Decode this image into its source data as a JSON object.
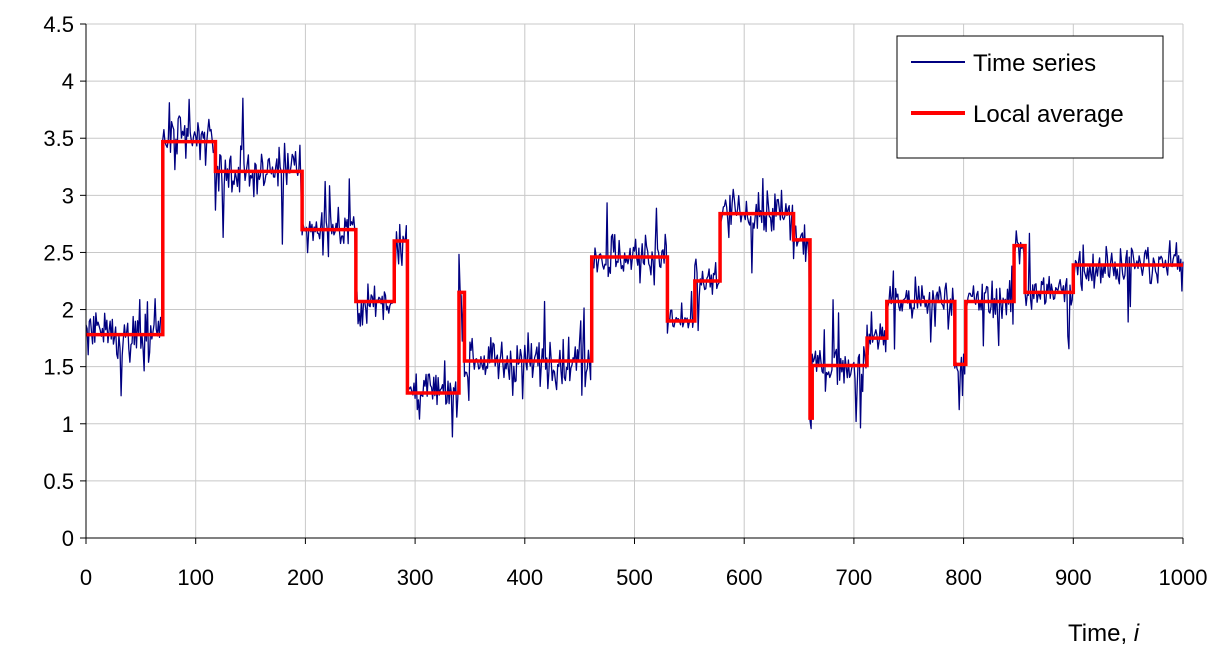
{
  "chart_data": {
    "type": "line",
    "title": "",
    "xlabel": "Time, i",
    "xlabel_main": "Time, ",
    "xlabel_var": "i",
    "ylabel": "",
    "xlim": [
      0,
      1000
    ],
    "ylim": [
      0,
      4.5
    ],
    "xticks": [
      0,
      100,
      200,
      300,
      400,
      500,
      600,
      700,
      800,
      900,
      1000
    ],
    "yticks": [
      0,
      0.5,
      1,
      1.5,
      2,
      2.5,
      3,
      3.5,
      4,
      4.5
    ],
    "xtick_labels": [
      "0",
      "100",
      "200",
      "300",
      "400",
      "500",
      "600",
      "700",
      "800",
      "900",
      "1000"
    ],
    "ytick_labels": [
      "0",
      "0.5",
      "1",
      "1.5",
      "2",
      "2.5",
      "3",
      "3.5",
      "4",
      "4.5"
    ],
    "grid": true,
    "legend_position": "top-right",
    "legend": [
      "Time series",
      "Local average"
    ],
    "series": [
      {
        "name": "Time series",
        "color": "#000080",
        "kind": "noisy",
        "noise_amplitude": 0.18,
        "spike_max": 3.85,
        "spike_min": 0.88
      },
      {
        "name": "Local average",
        "color": "#ff0000",
        "kind": "step",
        "segments": [
          {
            "start": 0,
            "end": 70,
            "value": 1.78
          },
          {
            "start": 70,
            "end": 118,
            "value": 3.47
          },
          {
            "start": 118,
            "end": 197,
            "value": 3.21
          },
          {
            "start": 197,
            "end": 246,
            "value": 2.7
          },
          {
            "start": 246,
            "end": 281,
            "value": 2.07
          },
          {
            "start": 281,
            "end": 293,
            "value": 2.6
          },
          {
            "start": 293,
            "end": 340,
            "value": 1.27
          },
          {
            "start": 340,
            "end": 345,
            "value": 2.15
          },
          {
            "start": 345,
            "end": 461,
            "value": 1.55
          },
          {
            "start": 461,
            "end": 530,
            "value": 2.46
          },
          {
            "start": 530,
            "end": 555,
            "value": 1.9
          },
          {
            "start": 555,
            "end": 578,
            "value": 2.25
          },
          {
            "start": 578,
            "end": 645,
            "value": 2.84
          },
          {
            "start": 645,
            "end": 660,
            "value": 2.61
          },
          {
            "start": 660,
            "end": 662,
            "value": 1.05
          },
          {
            "start": 662,
            "end": 712,
            "value": 1.51
          },
          {
            "start": 712,
            "end": 730,
            "value": 1.75
          },
          {
            "start": 730,
            "end": 792,
            "value": 2.07
          },
          {
            "start": 792,
            "end": 802,
            "value": 1.52
          },
          {
            "start": 802,
            "end": 846,
            "value": 2.07
          },
          {
            "start": 846,
            "end": 856,
            "value": 2.56
          },
          {
            "start": 856,
            "end": 900,
            "value": 2.15
          },
          {
            "start": 900,
            "end": 1000,
            "value": 2.39
          }
        ]
      }
    ]
  }
}
